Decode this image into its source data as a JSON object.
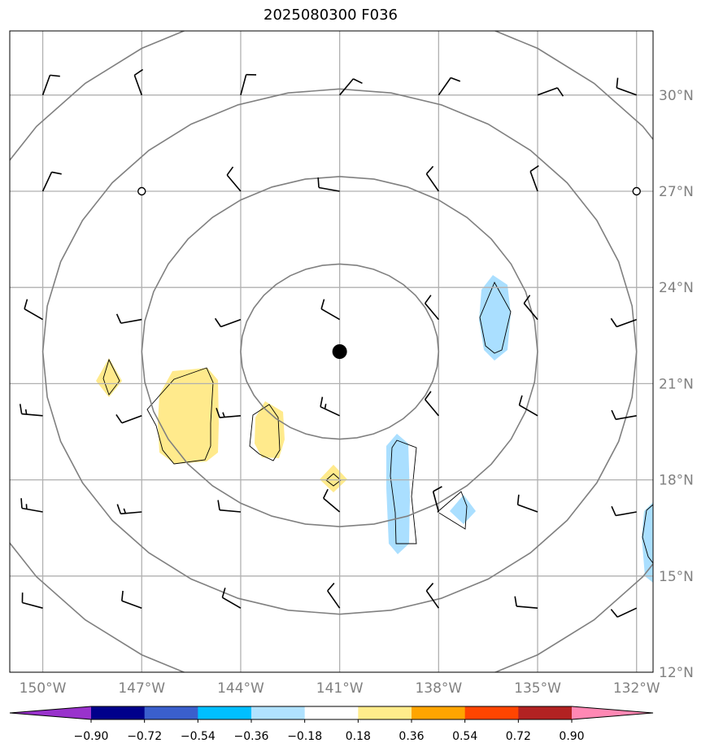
{
  "title": "2025080300 F036",
  "map": {
    "lon_range": [
      -151,
      -131.5
    ],
    "lat_range": [
      12,
      32
    ],
    "lon_ticks": [
      {
        "value": -150,
        "label": "150°W"
      },
      {
        "value": -147,
        "label": "147°W"
      },
      {
        "value": -144,
        "label": "144°W"
      },
      {
        "value": -141,
        "label": "141°W"
      },
      {
        "value": -138,
        "label": "138°W"
      },
      {
        "value": -135,
        "label": "135°W"
      },
      {
        "value": -132,
        "label": "132°W"
      }
    ],
    "lat_ticks": [
      {
        "value": 12,
        "label": "12°N"
      },
      {
        "value": 15,
        "label": "15°N"
      },
      {
        "value": 18,
        "label": "18°N"
      },
      {
        "value": 21,
        "label": "21°N"
      },
      {
        "value": 24,
        "label": "24°N"
      },
      {
        "value": 27,
        "label": "27°N"
      },
      {
        "value": 30,
        "label": "30°N"
      }
    ],
    "grid": true,
    "center": {
      "lon": -141,
      "lat": 22
    },
    "range_rings_deg": [
      3,
      6,
      9,
      12
    ],
    "colors": {
      "ring": "#808080",
      "grid": "#b0b0b0",
      "positive": "#ffea8c",
      "negative": "#aadfff"
    }
  },
  "colorbar": {
    "levels": [
      "−0.90",
      "−0.72",
      "−0.54",
      "−0.36",
      "−0.18",
      "0.18",
      "0.36",
      "0.54",
      "0.72",
      "0.90"
    ],
    "colors": [
      "#9932cc",
      "#00008b",
      "#3a5fcd",
      "#00bfff",
      "#b0e2ff",
      "#ffffff",
      "#ffec8b",
      "#ffa500",
      "#ff4500",
      "#b22222",
      "#ff88b4"
    ]
  },
  "wind_barbs": [
    {
      "lon": -150,
      "lat": 30,
      "dir": 20,
      "full": 1,
      "half": 0
    },
    {
      "lon": -147,
      "lat": 30,
      "dir": 340,
      "full": 1,
      "half": 0
    },
    {
      "lon": -144,
      "lat": 30,
      "dir": 15,
      "full": 1,
      "half": 0
    },
    {
      "lon": -141,
      "lat": 30,
      "dir": 40,
      "full": 1,
      "half": 0
    },
    {
      "lon": -138,
      "lat": 30,
      "dir": 35,
      "full": 1,
      "half": 0
    },
    {
      "lon": -135,
      "lat": 30,
      "dir": 70,
      "full": 1,
      "half": 0
    },
    {
      "lon": -132,
      "lat": 30,
      "dir": 290,
      "full": 1,
      "half": 0
    },
    {
      "lon": -150,
      "lat": 27,
      "dir": 25,
      "full": 1,
      "half": 0
    },
    {
      "lon": -147,
      "lat": 27,
      "calm": true
    },
    {
      "lon": -144,
      "lat": 27,
      "dir": 320,
      "full": 1,
      "half": 0
    },
    {
      "lon": -141,
      "lat": 27,
      "dir": 280,
      "full": 1,
      "half": 0
    },
    {
      "lon": -138,
      "lat": 27,
      "dir": 325,
      "full": 1,
      "half": 0
    },
    {
      "lon": -135,
      "lat": 27,
      "dir": 340,
      "full": 1,
      "half": 0
    },
    {
      "lon": -132,
      "lat": 27,
      "calm": true
    },
    {
      "lon": -150,
      "lat": 23,
      "dir": 300,
      "full": 1,
      "half": 0
    },
    {
      "lon": -147,
      "lat": 23,
      "dir": 260,
      "full": 1,
      "half": 0
    },
    {
      "lon": -144,
      "lat": 23,
      "dir": 250,
      "full": 1,
      "half": 0
    },
    {
      "lon": -141,
      "lat": 23,
      "dir": 300,
      "full": 1,
      "half": 0
    },
    {
      "lon": -138,
      "lat": 23,
      "dir": 320,
      "full": 1,
      "half": 0
    },
    {
      "lon": -135,
      "lat": 23,
      "dir": 320,
      "full": 1,
      "half": 0
    },
    {
      "lon": -132,
      "lat": 23,
      "dir": 250,
      "full": 1,
      "half": 0
    },
    {
      "lon": -150,
      "lat": 20,
      "dir": 275,
      "full": 1,
      "half": 1
    },
    {
      "lon": -147,
      "lat": 20,
      "dir": 250,
      "full": 1,
      "half": 0
    },
    {
      "lon": -144,
      "lat": 20,
      "dir": 265,
      "full": 1,
      "half": 1
    },
    {
      "lon": -141,
      "lat": 20,
      "dir": 295,
      "full": 1,
      "half": 1
    },
    {
      "lon": -138,
      "lat": 20,
      "dir": 320,
      "full": 1,
      "half": 0
    },
    {
      "lon": -135,
      "lat": 20,
      "dir": 300,
      "full": 1,
      "half": 0
    },
    {
      "lon": -132,
      "lat": 20,
      "dir": 260,
      "full": 1,
      "half": 0
    },
    {
      "lon": -150,
      "lat": 17,
      "dir": 280,
      "full": 1,
      "half": 1
    },
    {
      "lon": -147,
      "lat": 17,
      "dir": 265,
      "full": 1,
      "half": 1
    },
    {
      "lon": -144,
      "lat": 17,
      "dir": 275,
      "full": 1,
      "half": 0
    },
    {
      "lon": -141,
      "lat": 17,
      "dir": 310,
      "full": 1,
      "half": 0
    },
    {
      "lon": -138,
      "lat": 17,
      "dir": 345,
      "full": 1,
      "half": 0
    },
    {
      "lon": -135,
      "lat": 17,
      "dir": 290,
      "full": 1,
      "half": 0
    },
    {
      "lon": -132,
      "lat": 17,
      "dir": 260,
      "full": 1,
      "half": 0
    },
    {
      "lon": -150,
      "lat": 14,
      "dir": 285,
      "full": 1,
      "half": 0
    },
    {
      "lon": -147,
      "lat": 14,
      "dir": 290,
      "full": 1,
      "half": 0
    },
    {
      "lon": -144,
      "lat": 14,
      "dir": 300,
      "full": 1,
      "half": 0
    },
    {
      "lon": -141,
      "lat": 14,
      "dir": 325,
      "full": 1,
      "half": 0
    },
    {
      "lon": -138,
      "lat": 14,
      "dir": 325,
      "full": 1,
      "half": 0
    },
    {
      "lon": -135,
      "lat": 14,
      "dir": 275,
      "full": 1,
      "half": 0
    },
    {
      "lon": -132,
      "lat": 14,
      "dir": 245,
      "full": 1,
      "half": 0
    }
  ]
}
